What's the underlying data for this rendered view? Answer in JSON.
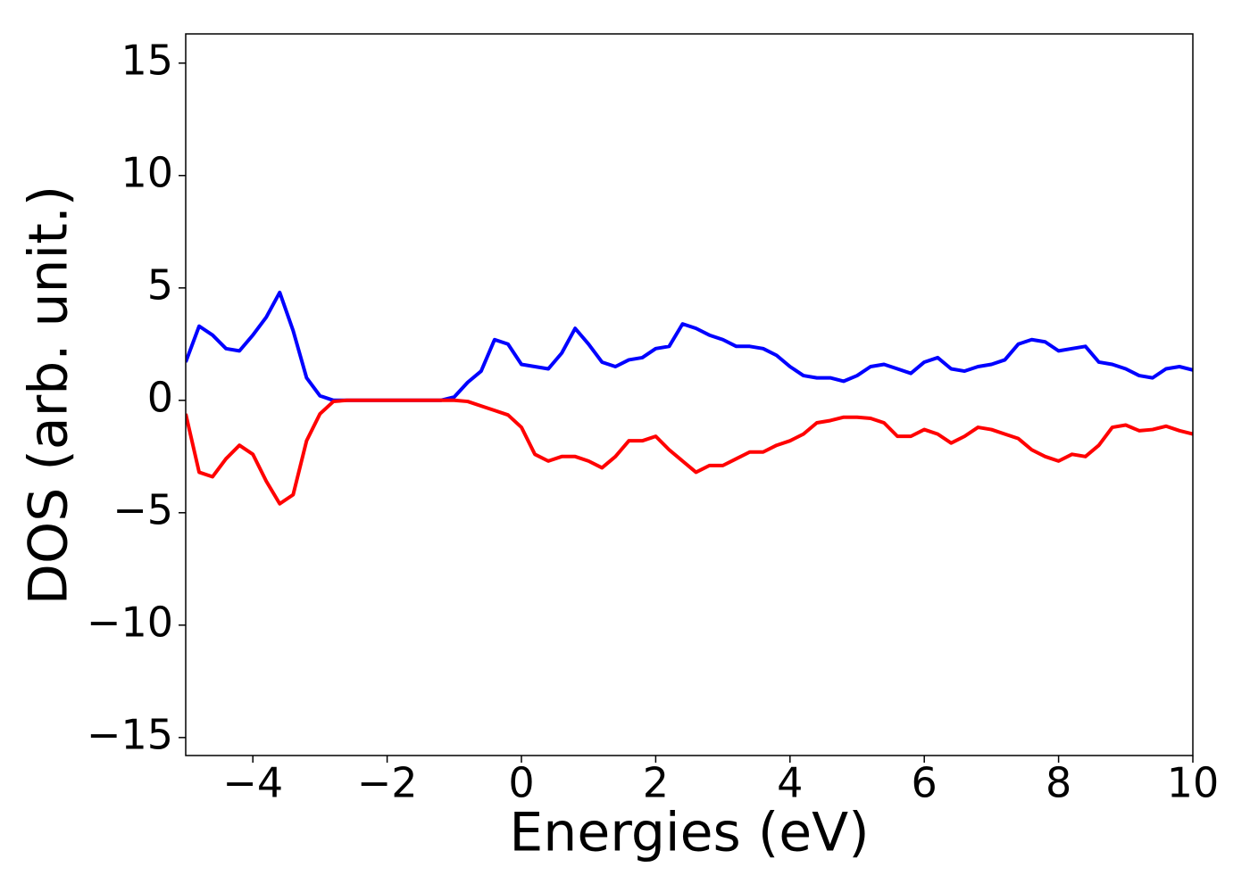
{
  "chart_data": {
    "type": "line",
    "xlabel": "Energies (eV)",
    "ylabel": "DOS (arb. unit.)",
    "x": [
      -5,
      -4.8,
      -4.6,
      -4.4,
      -4.2,
      -4,
      -3.8,
      -3.6,
      -3.4,
      -3.2,
      -3,
      -2.8,
      -2.6,
      -2.4,
      -2.2,
      -2,
      -1.8,
      -1.6,
      -1.4,
      -1.2,
      -1,
      -0.8,
      -0.6,
      -0.4,
      -0.2,
      0,
      0.2,
      0.4,
      0.6,
      0.8,
      1,
      1.2,
      1.4,
      1.6,
      1.8,
      2,
      2.2,
      2.4,
      2.6,
      2.8,
      3,
      3.2,
      3.4,
      3.6,
      3.8,
      4,
      4.2,
      4.4,
      4.6,
      4.8,
      5,
      5.2,
      5.4,
      5.6,
      5.8,
      6,
      6.2,
      6.4,
      6.6,
      6.8,
      7,
      7.2,
      7.4,
      7.6,
      7.8,
      8,
      8.2,
      8.4,
      8.6,
      8.8,
      9,
      9.2,
      9.4,
      9.6,
      9.8,
      10
    ],
    "series": [
      {
        "color": "#0000ff",
        "values": [
          1.7,
          3.3,
          2.9,
          2.3,
          2.2,
          2.9,
          3.7,
          4.8,
          3.1,
          1.0,
          0.2,
          0,
          0,
          0,
          0,
          0,
          0,
          0,
          0,
          0,
          0.15,
          0.8,
          1.3,
          2.7,
          2.5,
          1.6,
          1.5,
          1.4,
          2.1,
          3.2,
          2.5,
          1.7,
          1.5,
          1.8,
          1.9,
          2.3,
          2.4,
          3.4,
          3.2,
          2.9,
          2.7,
          2.4,
          2.4,
          2.3,
          2.0,
          1.5,
          1.1,
          1.0,
          1.0,
          0.85,
          1.1,
          1.5,
          1.6,
          1.4,
          1.2,
          1.7,
          1.9,
          1.4,
          1.3,
          1.5,
          1.6,
          1.8,
          2.5,
          2.7,
          2.6,
          2.2,
          2.3,
          2.4,
          1.7,
          1.6,
          1.4,
          1.1,
          1.0,
          1.4,
          1.5,
          1.35
        ]
      },
      {
        "color": "#ff0000",
        "values": [
          -0.6,
          -3.2,
          -3.4,
          -2.6,
          -2.0,
          -2.4,
          -3.6,
          -4.6,
          -4.2,
          -1.8,
          -0.6,
          -0.05,
          0,
          0,
          0,
          0,
          0,
          0,
          0,
          0,
          0,
          -0.05,
          -0.25,
          -0.45,
          -0.65,
          -1.2,
          -2.4,
          -2.7,
          -2.5,
          -2.5,
          -2.7,
          -3.0,
          -2.5,
          -1.8,
          -1.8,
          -1.6,
          -2.2,
          -2.7,
          -3.2,
          -2.9,
          -2.9,
          -2.6,
          -2.3,
          -2.3,
          -2.0,
          -1.8,
          -1.5,
          -1.0,
          -0.9,
          -0.75,
          -0.75,
          -0.8,
          -1.0,
          -1.6,
          -1.6,
          -1.3,
          -1.5,
          -1.9,
          -1.6,
          -1.2,
          -1.3,
          -1.5,
          -1.7,
          -2.2,
          -2.5,
          -2.7,
          -2.4,
          -2.5,
          -2.0,
          -1.2,
          -1.1,
          -1.35,
          -1.3,
          -1.15,
          -1.35,
          -1.5
        ]
      }
    ],
    "xlim": [
      -5,
      10
    ],
    "ylim": [
      -15.8,
      16.3
    ],
    "xticks": [
      {
        "value": -4,
        "label": "−4"
      },
      {
        "value": -2,
        "label": "−2"
      },
      0,
      2,
      4,
      6,
      8,
      10
    ],
    "yticks": [
      {
        "value": -15,
        "label": "−15"
      },
      {
        "value": -10,
        "label": "−10"
      },
      {
        "value": -5,
        "label": "−5"
      },
      0,
      5,
      10,
      15
    ],
    "grid": false
  }
}
